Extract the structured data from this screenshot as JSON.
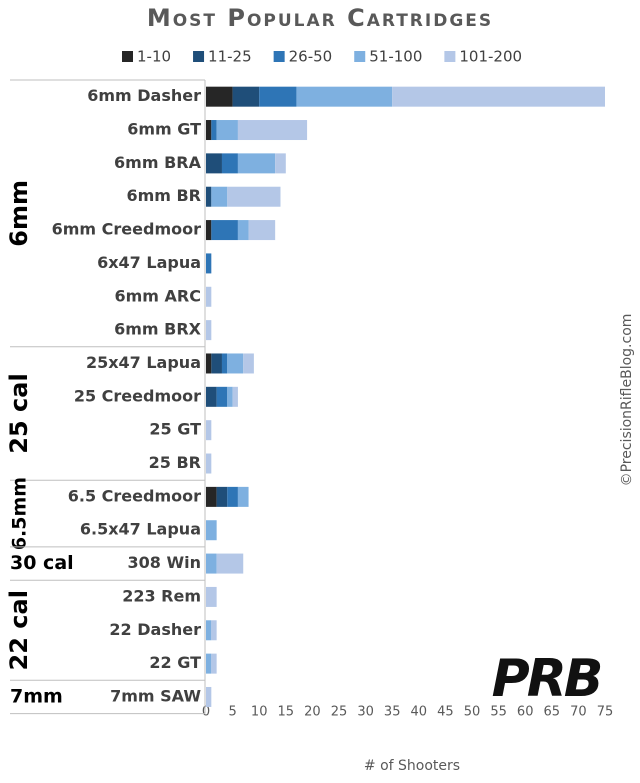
{
  "chart_data": {
    "type": "stacked-barh",
    "title": "Most Popular Cartridges",
    "x_label": "# of Shooters",
    "categories": [
      "6mm Dasher",
      "6mm GT",
      "6mm BRA",
      "6mm BR",
      "6mm Creedmoor",
      "6x47 Lapua",
      "6mm ARC",
      "6mm BRX",
      "25x47 Lapua",
      "25 Creedmoor",
      "25 GT",
      "25 BR",
      "6.5 Creedmoor",
      "6.5x47 Lapua",
      "308 Win",
      "223 Rem",
      "22 Dasher",
      "22 GT",
      "7mm SAW"
    ],
    "groups": [
      "6mm",
      "25 cal",
      "6.5mm",
      "30 cal",
      "22 cal",
      "7mm"
    ],
    "series": [
      {
        "name": "1-10",
        "color": "#262626",
        "values": [
          5,
          1,
          0,
          0,
          1,
          0,
          0,
          0,
          1,
          0,
          0,
          0,
          2,
          0,
          0,
          0,
          0,
          0,
          0
        ]
      },
      {
        "name": "11-25",
        "color": "#1f4e79",
        "values": [
          5,
          0,
          3,
          1,
          0,
          0,
          0,
          0,
          2,
          2,
          0,
          0,
          2,
          0,
          0,
          0,
          0,
          0,
          0
        ]
      },
      {
        "name": "26-50",
        "color": "#2e75b6",
        "values": [
          7,
          1,
          3,
          0,
          5,
          1,
          0,
          0,
          1,
          2,
          0,
          0,
          2,
          0,
          0,
          0,
          0,
          0,
          0
        ]
      },
      {
        "name": "51-100",
        "color": "#7eb0e0",
        "values": [
          18,
          4,
          7,
          3,
          2,
          0,
          0,
          0,
          3,
          1,
          0,
          0,
          2,
          2,
          2,
          0,
          1,
          1,
          0
        ]
      },
      {
        "name": "101-200",
        "color": "#b4c7e7",
        "values": [
          40,
          13,
          2,
          10,
          5,
          0,
          1,
          1,
          2,
          1,
          1,
          1,
          0,
          0,
          5,
          2,
          1,
          1,
          1
        ]
      }
    ],
    "xlim": [
      0,
      75
    ],
    "xticks": [
      0,
      5,
      10,
      15,
      20,
      25,
      30,
      35,
      40,
      45,
      50,
      55,
      60,
      65,
      70,
      75
    ],
    "watermark": "©PrecisionRifleBlog.com",
    "logo": "PRB"
  }
}
